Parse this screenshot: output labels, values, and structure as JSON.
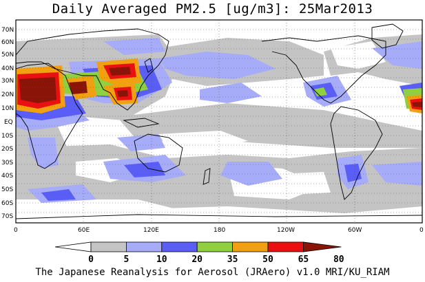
{
  "title": "Daily Averaged PM2.5 [ug/m3]: 25Mar2013",
  "credit": "The Japanese Reanalysis for Aerosol (JRAero) v1.0 MRI/KU_RIAM",
  "latitude_labels": [
    "70N",
    "60N",
    "50N",
    "40N",
    "30N",
    "20N",
    "10N",
    "EQ",
    "10S",
    "20S",
    "30S",
    "40S",
    "50S",
    "60S",
    "70S"
  ],
  "longitude_labels": [
    "0",
    "60E",
    "120E",
    "180",
    "120W",
    "60W",
    "0"
  ],
  "colorbar": {
    "tick_labels": [
      "0",
      "5",
      "10",
      "20",
      "35",
      "50",
      "65",
      "80"
    ],
    "colors": [
      "#ffffff",
      "#c4c4c4",
      "#a6acf7",
      "#5a5ef5",
      "#90d040",
      "#f0a010",
      "#e81010",
      "#8a1408"
    ]
  },
  "chart_data": {
    "type": "heatmap",
    "title": "Daily Averaged PM2.5 [ug/m3]: 25Mar2013",
    "levels": [
      0,
      5,
      10,
      20,
      35,
      50,
      65,
      80
    ],
    "level_colors": [
      "#ffffff",
      "#c4c4c4",
      "#a6acf7",
      "#5a5ef5",
      "#90d040",
      "#f0a010",
      "#e81010",
      "#8a1408"
    ],
    "lat_range": [
      "70S",
      "70N"
    ],
    "lon_range": [
      "0",
      "0"
    ],
    "grid": "dotted"
  }
}
